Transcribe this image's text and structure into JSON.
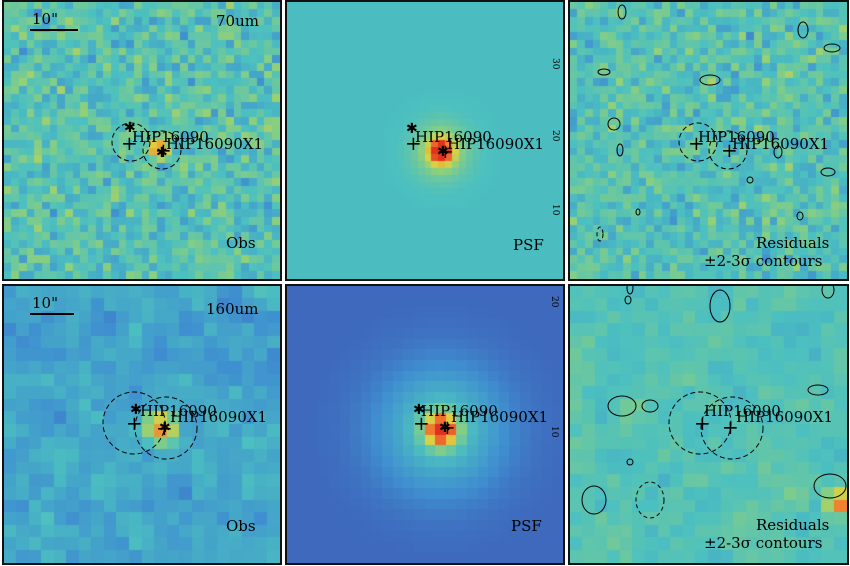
{
  "rows": [
    {
      "band": "70um",
      "scale_bar": "10\"",
      "panels": {
        "obs": {
          "label": "Obs"
        },
        "psf": {
          "label": "PSF"
        },
        "res": {
          "label_line1": "Residuals",
          "label_line2": "±2-3σ contours"
        }
      },
      "targets": [
        "HIP16090",
        "HIP16090X1"
      ]
    },
    {
      "band": "160um",
      "scale_bar": "10\"",
      "panels": {
        "obs": {
          "label": "Obs"
        },
        "psf": {
          "label": "PSF"
        },
        "res": {
          "label_line1": "Residuals",
          "label_line2": "±2-3σ contours"
        }
      },
      "targets": [
        "HIP16090",
        "HIP16090X1"
      ]
    }
  ],
  "psf_axis_ticks": {
    "top_row": [
      "30",
      "20",
      "10"
    ],
    "bottom_row": [
      "20",
      "10"
    ]
  },
  "colormap": [
    "#3b0f70",
    "#3e4fb0",
    "#3f8fd0",
    "#4cc0c0",
    "#8fd07a",
    "#e0d040",
    "#f07a30",
    "#e03020"
  ]
}
